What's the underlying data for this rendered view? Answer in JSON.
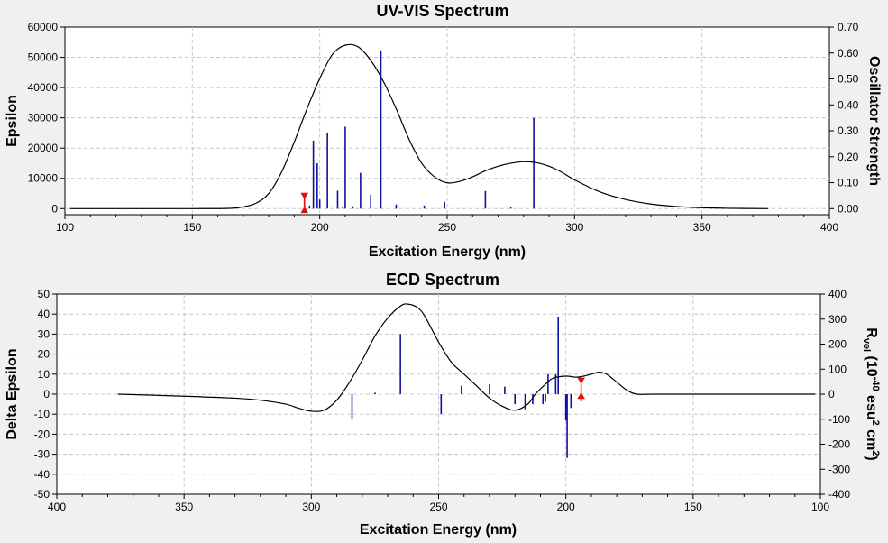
{
  "chart_data": [
    {
      "type": "line",
      "title": "UV-VIS Spectrum",
      "xlabel": "Excitation Energy (nm)",
      "ylabel": "Epsilon",
      "y2label": "Oscillator Strength",
      "xlim": [
        100,
        400
      ],
      "ylim": [
        -2000,
        60000
      ],
      "y2lim": [
        -0.0233,
        0.7
      ],
      "xticks": [
        "100",
        "150",
        "200",
        "250",
        "300",
        "350",
        "400"
      ],
      "yticks": [
        "0",
        "10000",
        "20000",
        "30000",
        "40000",
        "50000",
        "60000"
      ],
      "y2ticks": [
        "0.00",
        "0.10",
        "0.20",
        "0.30",
        "0.40",
        "0.50",
        "0.60",
        "0.70"
      ],
      "grid": true,
      "series": [
        {
          "name": "Epsilon",
          "x": [
            102,
            150,
            165,
            170,
            175,
            180,
            185,
            190,
            195,
            200,
            205,
            210,
            215,
            220,
            225,
            230,
            235,
            240,
            245,
            250,
            255,
            260,
            265,
            270,
            275,
            280,
            285,
            290,
            295,
            300,
            310,
            320,
            330,
            340,
            350,
            360,
            376
          ],
          "y": [
            0,
            0,
            100,
            600,
            1800,
            5000,
            12000,
            22000,
            33000,
            43000,
            51000,
            54000,
            53500,
            49000,
            42000,
            33000,
            23000,
            15000,
            10500,
            8500,
            9000,
            10500,
            12500,
            14000,
            15000,
            15500,
            15200,
            14000,
            12000,
            9500,
            5500,
            3000,
            1500,
            700,
            300,
            100,
            0
          ]
        },
        {
          "name": "Oscillator Strength",
          "x": [
            194,
            196,
            197.5,
            199,
            200,
            203,
            207,
            209,
            210,
            213,
            216,
            220,
            224,
            230,
            241,
            249,
            265,
            275,
            284
          ],
          "y": [
            0.055,
            0.012,
            0.262,
            0.175,
            0.035,
            0.291,
            0.069,
            0.005,
            0.316,
            0.009,
            0.138,
            0.054,
            0.61,
            0.016,
            0.012,
            0.026,
            0.068,
            0.006,
            0.35
          ]
        }
      ],
      "marker_x": 194
    },
    {
      "type": "line",
      "title": "ECD Spectrum",
      "xlabel": "Excitation Energy (nm)",
      "ylabel": "Delta Epsilon",
      "y2label_main": "R",
      "y2label_sub": "vel",
      "y2label_a": " (10",
      "y2label_sup1": "-40",
      "y2label_b": " esu",
      "y2label_sup2": "2",
      "y2label_c": " cm",
      "y2label_sup3": "2",
      "y2label_d": ")",
      "xlim": [
        400,
        100
      ],
      "ylim": [
        -50,
        50
      ],
      "y2lim": [
        -400,
        400
      ],
      "xticks": [
        "400",
        "350",
        "300",
        "250",
        "200",
        "150",
        "100"
      ],
      "yticks": [
        "-50",
        "-40",
        "-30",
        "-20",
        "-10",
        "0",
        "10",
        "20",
        "30",
        "40",
        "50"
      ],
      "y2ticks": [
        "-400",
        "-300",
        "-200",
        "-100",
        "0",
        "100",
        "200",
        "300",
        "400"
      ],
      "grid": true,
      "series": [
        {
          "name": "Delta Epsilon",
          "x": [
            376,
            350,
            330,
            320,
            310,
            305,
            300,
            295,
            290,
            285,
            280,
            275,
            270,
            265,
            262,
            258,
            255,
            250,
            245,
            240,
            235,
            230,
            225,
            220,
            215,
            212,
            208,
            205,
            200,
            196,
            193,
            190,
            187,
            184,
            180,
            176,
            172,
            165,
            130,
            102
          ],
          "y": [
            0,
            -1,
            -2,
            -3,
            -5,
            -7,
            -8.5,
            -8,
            -3,
            6,
            17,
            29,
            38,
            44,
            45,
            43,
            38,
            26,
            16,
            10,
            4,
            -2,
            -6,
            -8,
            -5,
            0,
            5,
            8,
            9,
            8.5,
            9,
            10,
            11,
            10,
            6,
            2,
            0,
            0,
            0,
            0
          ]
        },
        {
          "name": "Rvel",
          "x": [
            284,
            275,
            265,
            249,
            241,
            230,
            224,
            220,
            216,
            213,
            209,
            208,
            207,
            204,
            203,
            200,
            199.5,
            198,
            194
          ],
          "y": [
            -100,
            6,
            240,
            -80,
            34,
            40,
            30,
            -40,
            -60,
            -40,
            -40,
            -30,
            80,
            80,
            310,
            -105,
            -255,
            -55,
            -30
          ]
        }
      ],
      "marker_x": 194
    }
  ]
}
